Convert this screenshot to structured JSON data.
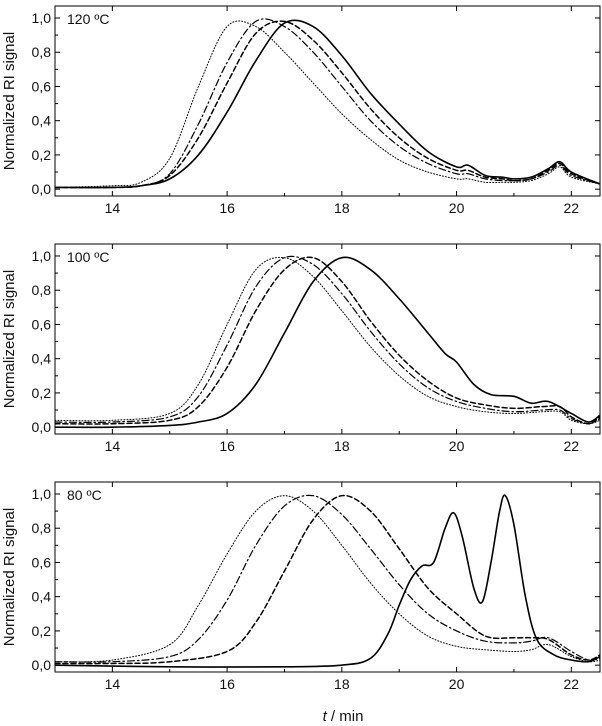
{
  "chart_data": [
    {
      "type": "line",
      "title": "120 ºC",
      "xlabel": "",
      "ylabel": "Normalized RI signal",
      "xlim": [
        13,
        22.5
      ],
      "ylim": [
        -0.04,
        1.07
      ],
      "xticks": [
        "14",
        "16",
        "18",
        "20",
        "22"
      ],
      "yticks": [
        "0,0",
        "0,2",
        "0,4",
        "0,6",
        "0,8",
        "1,0"
      ],
      "series": [
        {
          "name": "solid",
          "dash": "solid",
          "x": [
            13,
            14,
            14.5,
            15,
            15.5,
            16,
            16.5,
            17,
            17.5,
            18,
            18.5,
            19,
            19.5,
            20,
            20.2,
            20.5,
            20.8,
            21,
            21.3,
            21.6,
            21.8,
            22,
            22.5
          ],
          "y": [
            0.01,
            0.01,
            0.02,
            0.06,
            0.2,
            0.45,
            0.75,
            0.97,
            0.95,
            0.78,
            0.56,
            0.38,
            0.22,
            0.13,
            0.14,
            0.08,
            0.07,
            0.06,
            0.07,
            0.12,
            0.16,
            0.1,
            0.03
          ]
        },
        {
          "name": "dashed",
          "dash": "dashed",
          "x": [
            13,
            14,
            14.5,
            15,
            15.5,
            16,
            16.5,
            17,
            17.5,
            18,
            18.5,
            19,
            19.5,
            20,
            20.2,
            20.5,
            20.8,
            21,
            21.3,
            21.6,
            21.8,
            22,
            22.5
          ],
          "y": [
            0.01,
            0.01,
            0.02,
            0.08,
            0.3,
            0.62,
            0.91,
            0.98,
            0.87,
            0.68,
            0.47,
            0.3,
            0.18,
            0.11,
            0.11,
            0.07,
            0.06,
            0.05,
            0.06,
            0.11,
            0.15,
            0.09,
            0.03
          ]
        },
        {
          "name": "dash-dot",
          "dash": "dashdot",
          "x": [
            13,
            14,
            14.5,
            15,
            15.5,
            16,
            16.5,
            17,
            17.5,
            18,
            18.5,
            19,
            19.5,
            20,
            20.2,
            20.5,
            20.8,
            21,
            21.3,
            21.6,
            21.8,
            22,
            22.5
          ],
          "y": [
            0.01,
            0.01,
            0.02,
            0.09,
            0.38,
            0.74,
            0.98,
            0.95,
            0.8,
            0.6,
            0.4,
            0.25,
            0.15,
            0.09,
            0.09,
            0.06,
            0.05,
            0.05,
            0.06,
            0.1,
            0.14,
            0.08,
            0.03
          ]
        },
        {
          "name": "dotted",
          "dash": "dotted",
          "x": [
            13,
            14,
            14.5,
            15,
            15.5,
            16,
            16.5,
            17,
            17.5,
            18,
            18.5,
            19,
            19.5,
            20,
            20.2,
            20.5,
            20.8,
            21,
            21.3,
            21.6,
            21.8,
            22,
            22.5
          ],
          "y": [
            0.01,
            0.02,
            0.04,
            0.18,
            0.6,
            0.95,
            0.95,
            0.8,
            0.62,
            0.44,
            0.29,
            0.17,
            0.1,
            0.06,
            0.06,
            0.04,
            0.04,
            0.04,
            0.05,
            0.09,
            0.13,
            0.07,
            0.03
          ]
        }
      ]
    },
    {
      "type": "line",
      "title": "100 ºC",
      "xlabel": "",
      "ylabel": "Normalized RI signal",
      "xlim": [
        13,
        22.5
      ],
      "ylim": [
        -0.04,
        1.07
      ],
      "xticks": [
        "14",
        "16",
        "18",
        "20",
        "22"
      ],
      "yticks": [
        "0,0",
        "0,2",
        "0,4",
        "0,6",
        "0,8",
        "1,0"
      ],
      "series": [
        {
          "name": "solid",
          "dash": "solid",
          "x": [
            13,
            14,
            15,
            15.5,
            16,
            16.5,
            17,
            17.5,
            18,
            18.5,
            19,
            19.5,
            19.8,
            20,
            20.3,
            20.6,
            21,
            21.3,
            21.6,
            22,
            22.3,
            22.5
          ],
          "y": [
            0.0,
            0.0,
            0.01,
            0.03,
            0.08,
            0.25,
            0.55,
            0.85,
            0.99,
            0.92,
            0.75,
            0.55,
            0.43,
            0.38,
            0.25,
            0.19,
            0.18,
            0.14,
            0.15,
            0.08,
            0.03,
            0.07
          ]
        },
        {
          "name": "dashed",
          "dash": "dashed",
          "x": [
            13,
            14,
            15,
            15.5,
            16,
            16.5,
            17,
            17.5,
            18,
            18.5,
            19,
            19.5,
            20,
            20.5,
            21,
            21.5,
            21.8,
            22,
            22.3,
            22.5
          ],
          "y": [
            0.02,
            0.02,
            0.04,
            0.12,
            0.35,
            0.68,
            0.92,
            0.99,
            0.85,
            0.62,
            0.42,
            0.27,
            0.17,
            0.13,
            0.11,
            0.12,
            0.12,
            0.06,
            0.02,
            0.06
          ]
        },
        {
          "name": "dash-dot",
          "dash": "dashdot",
          "x": [
            13,
            14,
            15,
            15.5,
            16,
            16.5,
            17,
            17.5,
            18,
            18.5,
            19,
            19.5,
            20,
            20.5,
            21,
            21.5,
            21.8,
            22,
            22.3,
            22.5
          ],
          "y": [
            0.03,
            0.03,
            0.06,
            0.18,
            0.48,
            0.82,
            0.99,
            0.95,
            0.78,
            0.56,
            0.37,
            0.23,
            0.15,
            0.11,
            0.09,
            0.1,
            0.1,
            0.05,
            0.02,
            0.05
          ]
        },
        {
          "name": "dotted",
          "dash": "dotted",
          "x": [
            13,
            14,
            15,
            15.5,
            16,
            16.5,
            17,
            17.5,
            18,
            18.5,
            19,
            19.5,
            20,
            20.5,
            21,
            21.5,
            21.8,
            22,
            22.3,
            22.5
          ],
          "y": [
            0.04,
            0.04,
            0.08,
            0.25,
            0.6,
            0.92,
            0.99,
            0.88,
            0.68,
            0.47,
            0.3,
            0.18,
            0.12,
            0.09,
            0.08,
            0.09,
            0.09,
            0.04,
            0.02,
            0.04
          ]
        }
      ]
    },
    {
      "type": "line",
      "title": "80 ºC",
      "xlabel": "t / min",
      "ylabel": "Normalized RI signal",
      "xlim": [
        13,
        22.5
      ],
      "ylim": [
        -0.04,
        1.07
      ],
      "xticks": [
        "14",
        "16",
        "18",
        "20",
        "22"
      ],
      "yticks": [
        "0,0",
        "0,2",
        "0,4",
        "0,6",
        "0,8",
        "1,0"
      ],
      "series": [
        {
          "name": "solid",
          "dash": "solid",
          "x": [
            13,
            15,
            17,
            18,
            18.5,
            18.8,
            19,
            19.2,
            19.4,
            19.6,
            19.8,
            19.95,
            20.1,
            20.3,
            20.45,
            20.6,
            20.75,
            20.85,
            21,
            21.2,
            21.4,
            21.7,
            22,
            22.3,
            22.5
          ],
          "y": [
            0.0,
            -0.01,
            -0.01,
            0.0,
            0.04,
            0.18,
            0.35,
            0.5,
            0.58,
            0.6,
            0.8,
            0.89,
            0.75,
            0.45,
            0.37,
            0.6,
            0.9,
            0.99,
            0.82,
            0.4,
            0.15,
            0.06,
            0.03,
            0.02,
            0.05
          ]
        },
        {
          "name": "dashed",
          "dash": "dashed",
          "x": [
            13,
            14,
            15,
            16,
            16.5,
            17,
            17.5,
            18,
            18.5,
            19,
            19.5,
            20,
            20.5,
            21,
            21.3,
            21.6,
            22,
            22.3,
            22.5
          ],
          "y": [
            0.01,
            0.01,
            0.02,
            0.08,
            0.25,
            0.55,
            0.85,
            0.99,
            0.9,
            0.68,
            0.45,
            0.3,
            0.17,
            0.16,
            0.16,
            0.15,
            0.06,
            0.03,
            0.06
          ]
        },
        {
          "name": "dash-dot",
          "dash": "dashdot",
          "x": [
            13,
            14,
            15,
            15.5,
            16,
            16.5,
            17,
            17.5,
            18,
            18.5,
            19,
            19.5,
            20,
            20.5,
            21,
            21.3,
            21.6,
            22,
            22.3,
            22.5
          ],
          "y": [
            0.02,
            0.02,
            0.05,
            0.15,
            0.38,
            0.7,
            0.93,
            0.99,
            0.88,
            0.68,
            0.47,
            0.3,
            0.2,
            0.14,
            0.13,
            0.14,
            0.16,
            0.08,
            0.03,
            0.04
          ]
        },
        {
          "name": "dotted",
          "dash": "dotted",
          "x": [
            13,
            14,
            15,
            15.5,
            16,
            16.5,
            17,
            17.5,
            18,
            18.5,
            19,
            19.5,
            20,
            20.5,
            21,
            21.3,
            21.6,
            22,
            22.3,
            22.5
          ],
          "y": [
            0.02,
            0.03,
            0.12,
            0.35,
            0.65,
            0.9,
            0.99,
            0.9,
            0.7,
            0.48,
            0.3,
            0.17,
            0.11,
            0.09,
            0.08,
            0.09,
            0.12,
            0.05,
            0.02,
            0.03
          ]
        }
      ]
    }
  ]
}
